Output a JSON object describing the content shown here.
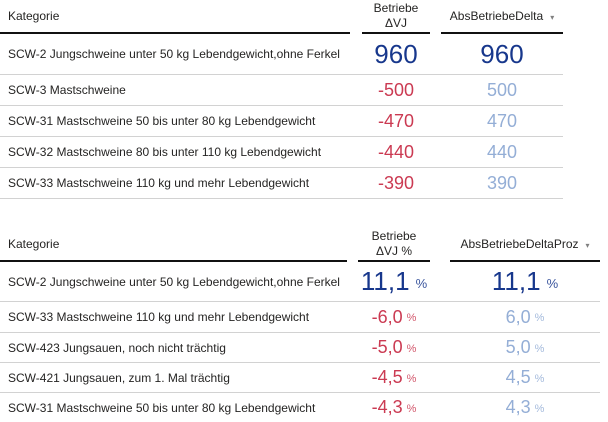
{
  "icons": {
    "sort_descending": "▾"
  },
  "colors": {
    "positive_value": "#17378C",
    "negative_value": "#CB3A52",
    "abs_value": "#94AED6",
    "header_rule": "#111111",
    "row_rule": "#d2d2d2",
    "text": "#252423"
  },
  "chart_data": [
    {
      "type": "table",
      "sorted_by": "AbsBetriebeDelta",
      "sort_direction": "descending",
      "headers": {
        "category": "Kategorie",
        "value_line1": "Betriebe",
        "value_line2": "ΔVJ",
        "abs": "AbsBetriebeDelta"
      },
      "unit": "",
      "rows": [
        {
          "category": "SCW-2 Jungschweine unter 50  kg Lebendgewicht,ohne Ferkel",
          "value": "960",
          "abs": "960"
        },
        {
          "category": "SCW-3 Mastschweine",
          "value": "-500",
          "abs": "500"
        },
        {
          "category": "SCW-31 Mastschweine 50 bis unter 80 kg Lebendgewicht",
          "value": "-470",
          "abs": "470"
        },
        {
          "category": "SCW-32 Mastschweine 80 bis unter 110 kg Lebendgewicht",
          "value": "-440",
          "abs": "440"
        },
        {
          "category": "SCW-33 Mastschweine 110 kg und mehr Lebendgewicht",
          "value": "-390",
          "abs": "390"
        }
      ]
    },
    {
      "type": "table",
      "sorted_by": "AbsBetriebeDeltaProz",
      "sort_direction": "descending",
      "headers": {
        "category": "Kategorie",
        "value_line1": "Betriebe",
        "value_line2": "ΔVJ %",
        "abs": "AbsBetriebeDeltaProz"
      },
      "unit": "%",
      "rows": [
        {
          "category": "SCW-2 Jungschweine unter 50  kg Lebendgewicht,ohne Ferkel",
          "value": "11,1",
          "abs": "11,1"
        },
        {
          "category": "SCW-33 Mastschweine 110 kg und mehr Lebendgewicht",
          "value": "-6,0",
          "abs": "6,0"
        },
        {
          "category": "SCW-423 Jungsauen, noch nicht trächtig",
          "value": "-5,0",
          "abs": "5,0"
        },
        {
          "category": "SCW-421 Jungsauen, zum 1. Mal trächtig",
          "value": "-4,5",
          "abs": "4,5"
        },
        {
          "category": "SCW-31 Mastschweine 50 bis unter 80 kg Lebendgewicht",
          "value": "-4,3",
          "abs": "4,3"
        }
      ]
    }
  ]
}
